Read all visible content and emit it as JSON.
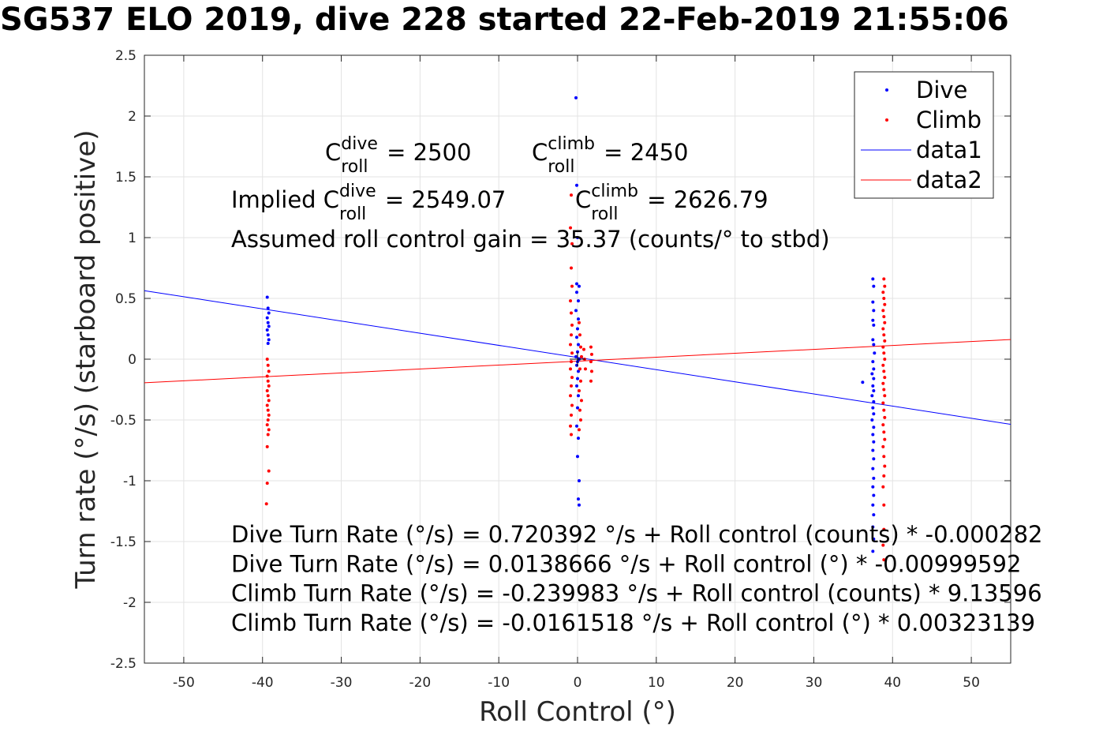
{
  "title": "SG537 ELO 2019, dive 228 started 22-Feb-2019 21:55:06",
  "chart_data": {
    "type": "scatter",
    "xlabel": "Roll Control (°)",
    "ylabel": "Turn rate (°/s) (starboard positive)",
    "xlim": [
      -55,
      55
    ],
    "ylim": [
      -2.5,
      2.5
    ],
    "xticks": [
      "-50",
      "-40",
      "-30",
      "-20",
      "-10",
      "0",
      "10",
      "20",
      "30",
      "40",
      "50"
    ],
    "yticks": [
      "-2.5",
      "-2",
      "-1.5",
      "-1",
      "-0.5",
      "0",
      "0.5",
      "1",
      "1.5",
      "2",
      "2.5"
    ],
    "grid": true,
    "legend_position": "top-right",
    "legend": [
      "Dive",
      "Climb",
      "data1",
      "data2"
    ],
    "colors": {
      "dive": "#0000ff",
      "climb": "#ff0000"
    },
    "fit_lines": [
      {
        "name": "data1",
        "color": "#0000ff",
        "intercept": 0.0138666,
        "slope": -0.00999592
      },
      {
        "name": "data2",
        "color": "#ff0000",
        "intercept": -0.0161518,
        "slope": 0.00323139
      }
    ],
    "dive_points": [
      [
        -39.4,
        0.51
      ],
      [
        -39.3,
        0.42
      ],
      [
        -39.2,
        0.38
      ],
      [
        -39.4,
        0.34
      ],
      [
        -39.3,
        0.3
      ],
      [
        -39.2,
        0.27
      ],
      [
        -39.4,
        0.24
      ],
      [
        -39.3,
        0.2
      ],
      [
        -39.2,
        0.16
      ],
      [
        -39.3,
        0.13
      ],
      [
        -0.2,
        2.15
      ],
      [
        -0.1,
        1.43
      ],
      [
        0.0,
        1.0
      ],
      [
        -0.1,
        0.62
      ],
      [
        0.2,
        0.6
      ],
      [
        -0.1,
        0.55
      ],
      [
        0.1,
        0.48
      ],
      [
        -0.2,
        0.4
      ],
      [
        0.1,
        0.33
      ],
      [
        0.0,
        0.25
      ],
      [
        -0.1,
        0.18
      ],
      [
        0.1,
        0.12
      ],
      [
        0.0,
        0.06
      ],
      [
        -0.2,
        0.02
      ],
      [
        0.2,
        0.0
      ],
      [
        0.0,
        -0.02
      ],
      [
        -0.1,
        -0.05
      ],
      [
        0.1,
        -0.1
      ],
      [
        0.0,
        -0.16
      ],
      [
        -0.1,
        -0.22
      ],
      [
        0.1,
        -0.3
      ],
      [
        0.0,
        -0.4
      ],
      [
        -0.1,
        -0.55
      ],
      [
        0.1,
        -0.65
      ],
      [
        0.0,
        -0.8
      ],
      [
        0.2,
        -1.0
      ],
      [
        0.1,
        -1.15
      ],
      [
        0.2,
        -1.2
      ],
      [
        37.5,
        0.66
      ],
      [
        37.6,
        0.6
      ],
      [
        37.5,
        0.47
      ],
      [
        37.6,
        0.4
      ],
      [
        37.5,
        0.32
      ],
      [
        37.6,
        0.28
      ],
      [
        37.5,
        0.16
      ],
      [
        37.6,
        0.12
      ],
      [
        37.7,
        0.05
      ],
      [
        37.5,
        -0.02
      ],
      [
        37.6,
        -0.08
      ],
      [
        37.4,
        -0.12
      ],
      [
        37.6,
        -0.16
      ],
      [
        36.2,
        -0.19
      ],
      [
        37.5,
        -0.22
      ],
      [
        37.6,
        -0.26
      ],
      [
        37.4,
        -0.3
      ],
      [
        37.6,
        -0.35
      ],
      [
        37.5,
        -0.4
      ],
      [
        37.6,
        -0.45
      ],
      [
        37.4,
        -0.5
      ],
      [
        37.6,
        -0.56
      ],
      [
        37.5,
        -0.62
      ],
      [
        37.6,
        -0.68
      ],
      [
        37.5,
        -0.75
      ],
      [
        37.6,
        -0.82
      ],
      [
        37.5,
        -0.9
      ],
      [
        37.6,
        -0.98
      ],
      [
        37.5,
        -1.05
      ],
      [
        37.6,
        -1.12
      ],
      [
        37.5,
        -1.2
      ],
      [
        37.6,
        -1.28
      ],
      [
        37.5,
        -1.38
      ],
      [
        37.6,
        -1.48
      ],
      [
        37.5,
        -1.58
      ]
    ],
    "climb_points": [
      [
        -39.4,
        0.0
      ],
      [
        -39.3,
        -0.05
      ],
      [
        -39.2,
        -0.1
      ],
      [
        -39.4,
        -0.14
      ],
      [
        -39.3,
        -0.18
      ],
      [
        -39.2,
        -0.22
      ],
      [
        -39.4,
        -0.26
      ],
      [
        -39.3,
        -0.3
      ],
      [
        -39.2,
        -0.34
      ],
      [
        -39.4,
        -0.38
      ],
      [
        -39.3,
        -0.42
      ],
      [
        -39.2,
        -0.46
      ],
      [
        -39.3,
        -0.5
      ],
      [
        -39.4,
        -0.54
      ],
      [
        -39.2,
        -0.58
      ],
      [
        -39.3,
        -0.62
      ],
      [
        -39.4,
        -0.72
      ],
      [
        -39.2,
        -0.92
      ],
      [
        -39.4,
        -1.02
      ],
      [
        -39.5,
        -1.19
      ],
      [
        -0.8,
        1.35
      ],
      [
        -0.9,
        1.08
      ],
      [
        -0.7,
        0.95
      ],
      [
        -0.8,
        0.75
      ],
      [
        -0.7,
        0.6
      ],
      [
        -0.9,
        0.48
      ],
      [
        -0.8,
        0.38
      ],
      [
        -0.7,
        0.28
      ],
      [
        -0.8,
        0.2
      ],
      [
        -0.9,
        0.12
      ],
      [
        -0.7,
        0.05
      ],
      [
        -0.8,
        -0.02
      ],
      [
        -0.9,
        -0.08
      ],
      [
        -0.7,
        -0.15
      ],
      [
        -0.8,
        -0.22
      ],
      [
        -0.9,
        -0.3
      ],
      [
        -0.7,
        -0.38
      ],
      [
        -0.8,
        -0.46
      ],
      [
        -0.9,
        -0.55
      ],
      [
        -0.8,
        -0.62
      ],
      [
        0.2,
        0.3
      ],
      [
        0.3,
        0.2
      ],
      [
        0.4,
        0.1
      ],
      [
        0.5,
        0.02
      ],
      [
        0.3,
        -0.08
      ],
      [
        0.4,
        -0.18
      ],
      [
        0.2,
        -0.26
      ],
      [
        0.5,
        -0.34
      ],
      [
        0.3,
        -0.42
      ],
      [
        0.4,
        -0.5
      ],
      [
        0.2,
        -0.58
      ],
      [
        0.8,
        0.08
      ],
      [
        0.9,
        0.0
      ],
      [
        1.0,
        -0.08
      ],
      [
        1.7,
        0.1
      ],
      [
        1.8,
        0.04
      ],
      [
        1.7,
        -0.02
      ],
      [
        1.8,
        -0.1
      ],
      [
        1.7,
        -0.18
      ],
      [
        38.9,
        0.66
      ],
      [
        39.0,
        0.6
      ],
      [
        38.8,
        0.55
      ],
      [
        38.9,
        0.5
      ],
      [
        39.0,
        0.45
      ],
      [
        38.8,
        0.4
      ],
      [
        38.9,
        0.35
      ],
      [
        39.0,
        0.3
      ],
      [
        38.8,
        0.25
      ],
      [
        38.9,
        0.2
      ],
      [
        39.0,
        0.15
      ],
      [
        38.8,
        0.1
      ],
      [
        38.9,
        0.05
      ],
      [
        39.0,
        0.0
      ],
      [
        38.8,
        -0.05
      ],
      [
        38.9,
        -0.1
      ],
      [
        39.0,
        -0.15
      ],
      [
        38.8,
        -0.2
      ],
      [
        38.9,
        -0.25
      ],
      [
        39.0,
        -0.3
      ],
      [
        38.8,
        -0.36
      ],
      [
        38.9,
        -0.42
      ],
      [
        39.0,
        -0.48
      ],
      [
        38.8,
        -0.54
      ],
      [
        38.9,
        -0.6
      ],
      [
        39.0,
        -0.66
      ],
      [
        38.8,
        -0.72
      ],
      [
        38.9,
        -0.8
      ],
      [
        39.0,
        -0.88
      ],
      [
        38.9,
        -0.96
      ],
      [
        38.8,
        -1.05
      ],
      [
        38.9,
        -1.2
      ],
      [
        38.9,
        -1.4
      ],
      [
        38.8,
        -1.53
      ],
      [
        38.9,
        -1.65
      ]
    ]
  },
  "annotations": {
    "c_roll_dive": {
      "prefix": "C",
      "sup": "dive",
      "sub": "roll",
      "suffix": " = 2500"
    },
    "c_roll_climb": {
      "prefix": "C",
      "sup": "climb",
      "sub": "roll",
      "suffix": " = 2450"
    },
    "implied_dive": {
      "prefix": "Implied C",
      "sup": "dive",
      "sub": "roll",
      "suffix": " = 2549.07"
    },
    "implied_climb": {
      "prefix": "C",
      "sup": "climb",
      "sub": "roll",
      "suffix": " = 2626.79"
    },
    "gain": "Assumed roll control gain = 35.37 (counts/° to stbd)",
    "eq1": "Dive Turn Rate (°/s) = 0.720392 °/s + Roll control (counts) * -0.000282",
    "eq2": "Dive Turn Rate (°/s) = 0.0138666 °/s + Roll control (°) * -0.00999592",
    "eq3": "Climb Turn Rate (°/s) = -0.239983 °/s + Roll control (counts) * 9.13596",
    "eq4": "Climb Turn Rate (°/s) = -0.0161518 °/s + Roll control (°) * 0.00323139"
  }
}
